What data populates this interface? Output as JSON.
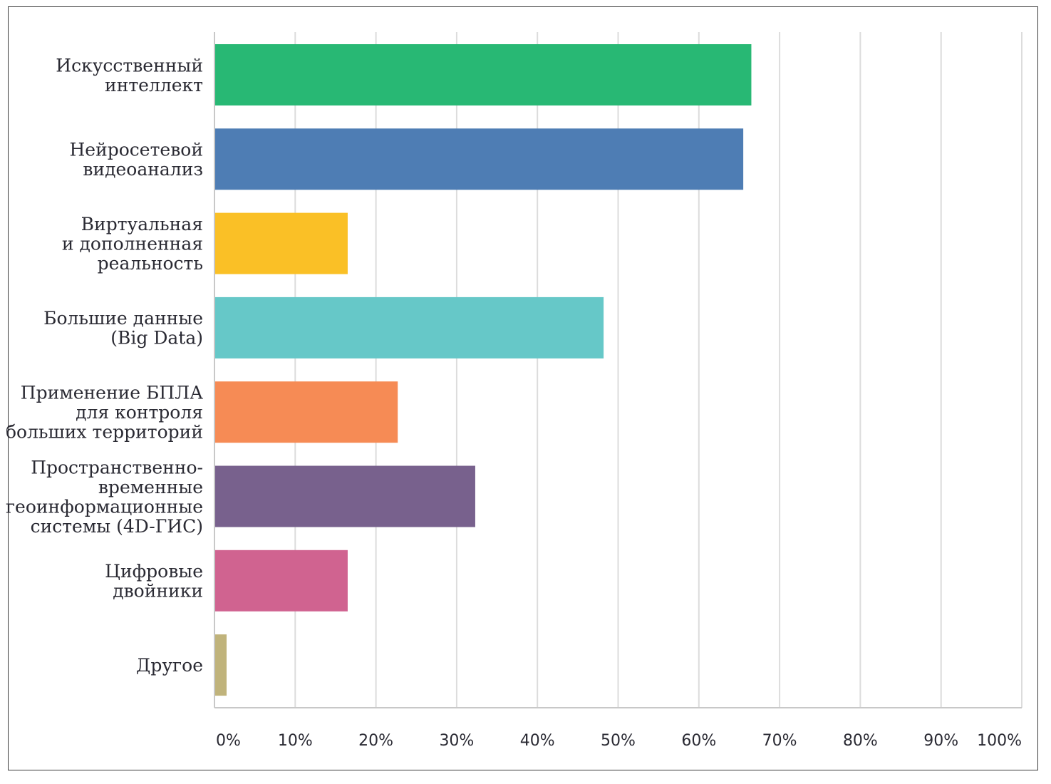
{
  "chart_data": {
    "type": "bar",
    "orientation": "horizontal",
    "categories": [
      [
        "Искусственный",
        "интеллект"
      ],
      [
        "Нейросетевой",
        "видеоанализ"
      ],
      [
        "Виртуальная",
        "и дополненная",
        "реальность"
      ],
      [
        "Большие данные",
        "(Big Data)"
      ],
      [
        "Применение БПЛА",
        "для контроля",
        "больших территорий"
      ],
      [
        "Пространственно-",
        "временные",
        "геоинформационные",
        "системы (4D-ГИС)"
      ],
      [
        "Цифровые",
        "двойники"
      ],
      [
        "Другое"
      ]
    ],
    "values": [
      66.5,
      65.5,
      16.5,
      48.2,
      22.7,
      32.3,
      16.5,
      1.5
    ],
    "colors": [
      "#28b874",
      "#4e7db4",
      "#fac026",
      "#66c8c8",
      "#f68b55",
      "#78618d",
      "#d06390",
      "#c0b37b"
    ],
    "xlim": [
      0,
      100
    ],
    "xticks": [
      0,
      10,
      20,
      30,
      40,
      50,
      60,
      70,
      80,
      90,
      100
    ],
    "xtick_labels": [
      "0%",
      "10%",
      "20%",
      "30%",
      "40%",
      "50%",
      "60%",
      "70%",
      "80%",
      "90%",
      "100%"
    ],
    "grid": true,
    "title": "",
    "xlabel": "",
    "ylabel": ""
  }
}
